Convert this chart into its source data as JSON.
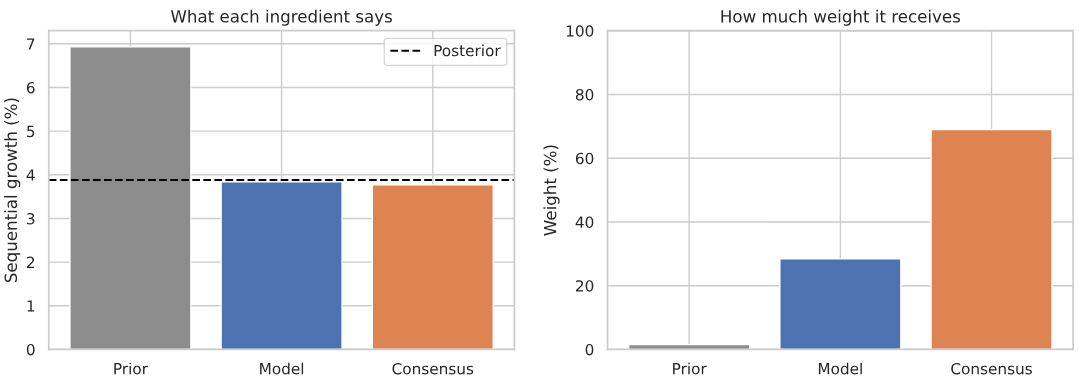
{
  "chart_data": [
    {
      "type": "bar",
      "title": "What each ingredient says",
      "ylabel": "Sequential growth (%)",
      "categories": [
        "Prior",
        "Model",
        "Consensus"
      ],
      "values": [
        6.93,
        3.84,
        3.77
      ],
      "colors": [
        "#8c8c8c",
        "#4c72b0",
        "#dd8452"
      ],
      "ylim": [
        0,
        7.3
      ],
      "yticks": [
        0,
        1,
        2,
        3,
        4,
        5,
        6,
        7
      ],
      "grid": true,
      "legend": "top right",
      "ref_lines": [
        {
          "axis": "y",
          "value": 3.88,
          "label": "Posterior",
          "color": "#000000",
          "line_style": "dashed"
        }
      ]
    },
    {
      "type": "bar",
      "title": "How much weight it receives",
      "ylabel": "Weight (%)",
      "categories": [
        "Prior",
        "Model",
        "Consensus"
      ],
      "values": [
        1.5,
        28.4,
        69.0
      ],
      "colors": [
        "#8c8c8c",
        "#4c72b0",
        "#dd8452"
      ],
      "ylim": [
        0,
        100
      ],
      "yticks": [
        0,
        20,
        40,
        60,
        80,
        100
      ],
      "grid": true
    }
  ]
}
